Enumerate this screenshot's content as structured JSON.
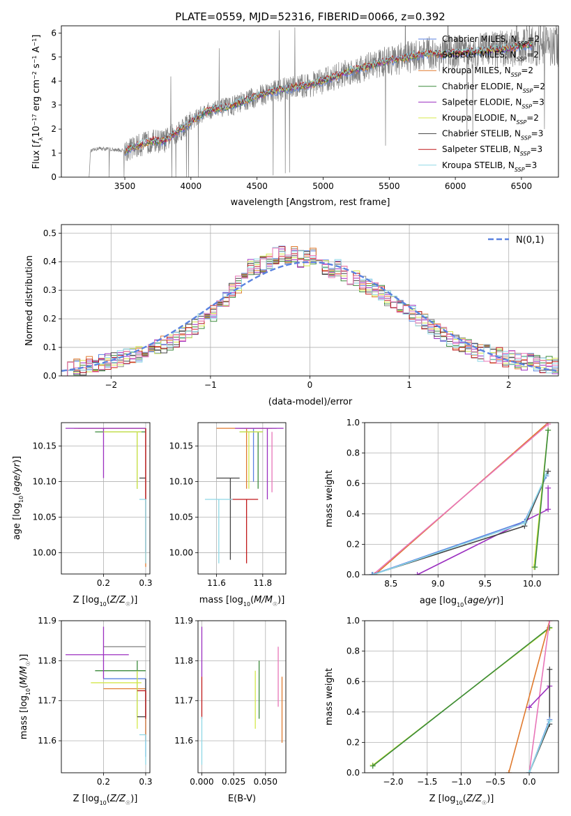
{
  "title": "PLATE=0559, MJD=52316, FIBERID=0066, z=0.392",
  "legend_entries": [
    {
      "label": "Chabrier MILES, N",
      "sub": "SSP",
      "suffix": "=2",
      "color": "#5a82e0"
    },
    {
      "label": "Salpeter MILES, N",
      "sub": "SSP",
      "suffix": "=2",
      "color": "#8c8c8c"
    },
    {
      "label": "Kroupa MILES, N",
      "sub": "SSP",
      "suffix": "=2",
      "color": "#e07a2e"
    },
    {
      "label": "Chabrier ELODIE, N",
      "sub": "SSP",
      "suffix": "=2",
      "color": "#3a8a3a"
    },
    {
      "label": "Salpeter ELODIE, N",
      "sub": "SSP",
      "suffix": "=3",
      "color": "#9b2fc0"
    },
    {
      "label": "Kroupa ELODIE, N",
      "sub": "SSP",
      "suffix": "=2",
      "color": "#d4e84a"
    },
    {
      "label": "Chabrier STELIB, N",
      "sub": "SSP",
      "suffix": "=3",
      "color": "#444444"
    },
    {
      "label": "Salpeter STELIB, N",
      "sub": "SSP",
      "suffix": "=3",
      "color": "#c0181a"
    },
    {
      "label": "Kroupa STELIB, N",
      "sub": "SSP",
      "suffix": "=3",
      "color": "#8fd8e6"
    }
  ],
  "chart_data": [
    {
      "type": "line",
      "panel": "spectrum",
      "xlabel": "wavelength [Angstrom, rest frame]",
      "ylabel_parts": [
        "Flux [",
        "f",
        "λ",
        "10",
        "−17",
        " erg cm",
        "−2",
        " s",
        "−1",
        " A",
        "−1",
        "]"
      ],
      "xlim": [
        3020,
        6780
      ],
      "ylim": [
        0,
        6.3
      ],
      "xticks": [
        3500,
        4000,
        4500,
        5000,
        5500,
        6000,
        6500
      ],
      "yticks": [
        0,
        1,
        2,
        3,
        4,
        5,
        6
      ],
      "continuum": [
        [
          3230,
          1.05
        ],
        [
          3300,
          1.2
        ],
        [
          3400,
          1.15
        ],
        [
          3500,
          1.1
        ],
        [
          3600,
          1.3
        ],
        [
          3700,
          1.5
        ],
        [
          3800,
          1.5
        ],
        [
          3900,
          1.9
        ],
        [
          4000,
          2.3
        ],
        [
          4100,
          2.7
        ],
        [
          4200,
          2.85
        ],
        [
          4300,
          2.95
        ],
        [
          4400,
          3.15
        ],
        [
          4500,
          3.35
        ],
        [
          4600,
          3.55
        ],
        [
          4700,
          3.65
        ],
        [
          4800,
          3.75
        ],
        [
          4900,
          3.85
        ],
        [
          5000,
          4.0
        ],
        [
          5100,
          4.2
        ],
        [
          5200,
          4.4
        ],
        [
          5300,
          4.55
        ],
        [
          5400,
          4.7
        ],
        [
          5500,
          4.85
        ],
        [
          5600,
          4.95
        ],
        [
          5700,
          5.05
        ],
        [
          5800,
          5.15
        ],
        [
          5900,
          5.1
        ],
        [
          6000,
          5.15
        ],
        [
          6100,
          5.2
        ],
        [
          6200,
          5.25
        ],
        [
          6300,
          5.3
        ],
        [
          6400,
          5.35
        ],
        [
          6500,
          5.45
        ],
        [
          6580,
          5.5
        ]
      ],
      "data_range": [
        3230,
        6780
      ],
      "model_range": [
        3500,
        6580
      ],
      "legend_position": "top-right"
    },
    {
      "type": "histogram",
      "panel": "residuals",
      "xlabel": "(data-model)/error",
      "ylabel": "Normed distribution",
      "xlim": [
        -2.5,
        2.5
      ],
      "ylim": [
        0,
        0.53
      ],
      "xticks": [
        -2,
        -1,
        0,
        1,
        2
      ],
      "yticks": [
        0,
        0.1,
        0.2,
        0.3,
        0.4,
        0.5
      ],
      "bin_width": 0.1,
      "gaussian_label": "N(0,1)",
      "gaussian_color": "#5a82e0",
      "base": [
        0.02,
        0.025,
        0.03,
        0.03,
        0.04,
        0.04,
        0.045,
        0.05,
        0.055,
        0.06,
        0.065,
        0.07,
        0.075,
        0.08,
        0.09,
        0.1,
        0.11,
        0.12,
        0.13,
        0.15,
        0.16,
        0.17,
        0.19,
        0.2,
        0.22,
        0.25,
        0.27,
        0.3,
        0.32,
        0.36,
        0.38,
        0.38,
        0.39,
        0.4,
        0.42,
        0.43,
        0.42,
        0.43,
        0.41,
        0.41,
        0.42,
        0.4,
        0.38,
        0.37,
        0.38,
        0.36,
        0.35,
        0.34,
        0.32,
        0.31,
        0.3,
        0.29,
        0.27,
        0.25,
        0.24,
        0.23,
        0.22,
        0.2,
        0.19,
        0.17,
        0.16,
        0.15,
        0.13,
        0.12,
        0.11,
        0.1,
        0.09,
        0.08,
        0.08,
        0.07,
        0.07,
        0.06,
        0.06,
        0.05,
        0.05,
        0.05,
        0.045,
        0.04,
        0.04,
        0.035
      ],
      "legend_position": "top-right"
    },
    {
      "type": "scatter",
      "panel": "Z-age",
      "xlabel": "Z [log10(Z/Z☉)]",
      "ylabel": "age [log10(age/yr)]",
      "xlim": [
        0.1,
        0.31
      ],
      "ylim": [
        9.97,
        10.183
      ],
      "xticks": [
        0.2,
        0.3
      ],
      "yticks": [
        10.0,
        10.05,
        10.1,
        10.15
      ],
      "points": [
        {
          "color": "#5a82e0",
          "x": 0.3,
          "y": 10.175,
          "xerr": [
            0.3,
            0.3
          ],
          "yerr": [
            10.175,
            10.0
          ]
        },
        {
          "color": "#8c8c8c",
          "x": 0.3,
          "y": 10.175,
          "xerr": [
            0.14,
            0.3
          ],
          "yerr": [
            10.175,
            10.175
          ]
        },
        {
          "color": "#e07a2e",
          "x": 0.3,
          "y": 10.175,
          "xerr": [
            0.13,
            0.3
          ],
          "yerr": [
            10.175,
            9.98
          ]
        },
        {
          "color": "#3a8a3a",
          "x": 0.28,
          "y": 10.17,
          "xerr": [
            0.18,
            0.3
          ],
          "yerr": [
            10.17,
            10.09
          ]
        },
        {
          "color": "#9b2fc0",
          "x": 0.2,
          "y": 10.175,
          "xerr": [
            0.11,
            0.3
          ],
          "yerr": [
            10.175,
            10.105
          ]
        },
        {
          "color": "#d4e84a",
          "x": 0.28,
          "y": 10.17,
          "xerr": [
            0.2,
            0.29
          ],
          "yerr": [
            10.17,
            10.09
          ]
        },
        {
          "color": "#444444",
          "x": 0.3,
          "y": 10.105,
          "xerr": [
            0.285,
            0.3
          ],
          "yerr": [
            10.105,
            10.105
          ]
        },
        {
          "color": "#c0181a",
          "x": 0.3,
          "y": 10.175,
          "xerr": [
            0.3,
            0.3
          ],
          "yerr": [
            10.175,
            10.075
          ]
        },
        {
          "color": "#8fd8e6",
          "x": 0.3,
          "y": 10.075,
          "xerr": [
            0.285,
            0.3
          ],
          "yerr": [
            10.075,
            9.985
          ]
        }
      ]
    },
    {
      "type": "scatter",
      "panel": "mass-age",
      "xlabel": "mass [log10(M/M☉)]",
      "xlim": [
        11.52,
        11.9
      ],
      "ylim": [
        9.97,
        10.183
      ],
      "xticks": [
        11.6,
        11.8
      ],
      "yticks": [
        10.0,
        10.05,
        10.1,
        10.15
      ],
      "points": [
        {
          "color": "#5a82e0",
          "x": 11.76,
          "y": 10.175,
          "xerr": [
            11.7,
            11.8
          ],
          "yerr": [
            10.175,
            10.1
          ]
        },
        {
          "color": "#8c8c8c",
          "x": 11.82,
          "y": 10.175,
          "xerr": [
            11.72,
            11.86
          ],
          "yerr": [
            10.175,
            10.175
          ]
        },
        {
          "color": "#e07a2e",
          "x": 11.73,
          "y": 10.175,
          "xerr": [
            11.6,
            11.84
          ],
          "yerr": [
            10.175,
            10.09
          ]
        },
        {
          "color": "#3a8a3a",
          "x": 11.78,
          "y": 10.17,
          "xerr": [
            11.7,
            11.8
          ],
          "yerr": [
            10.17,
            10.09
          ]
        },
        {
          "color": "#9b2fc0",
          "x": 11.82,
          "y": 10.175,
          "xerr": [
            11.68,
            11.89
          ],
          "yerr": [
            10.175,
            10.075
          ]
        },
        {
          "color": "#d4e84a",
          "x": 11.74,
          "y": 10.17,
          "xerr": [
            11.7,
            11.8
          ],
          "yerr": [
            10.17,
            10.09
          ]
        },
        {
          "color": "#444444",
          "x": 11.66,
          "y": 10.105,
          "xerr": [
            11.6,
            11.7
          ],
          "yerr": [
            10.105,
            9.99
          ]
        },
        {
          "color": "#c0181a",
          "x": 11.73,
          "y": 10.075,
          "xerr": [
            11.66,
            11.78
          ],
          "yerr": [
            10.075,
            9.985
          ]
        },
        {
          "color": "#8fd8e6",
          "x": 11.61,
          "y": 10.075,
          "xerr": [
            11.55,
            11.67
          ],
          "yerr": [
            10.075,
            9.985
          ]
        },
        {
          "color": "#e875b8",
          "x": 11.84,
          "y": 10.1,
          "xerr": [
            11.84,
            11.84
          ],
          "yerr": [
            10.17,
            10.085
          ]
        }
      ]
    },
    {
      "type": "line",
      "panel": "age-weight",
      "xlabel": "age [log10(age/yr)]",
      "ylabel": "mass weight",
      "xlim": [
        8.22,
        10.28
      ],
      "ylim": [
        0,
        1
      ],
      "xticks": [
        8.5,
        9.0,
        9.5,
        10.0
      ],
      "yticks": [
        0,
        0.2,
        0.4,
        0.6,
        0.8,
        1.0
      ],
      "series": [
        {
          "color": "#e07a2e",
          "points": [
            [
              8.33,
              0.0
            ],
            [
              10.17,
              1.0
            ]
          ]
        },
        {
          "color": "#e875b8",
          "points": [
            [
              8.31,
              0.0
            ],
            [
              10.17,
              0.99
            ]
          ]
        },
        {
          "color": "#9b2fc0",
          "points": [
            [
              8.78,
              0.0
            ],
            [
              10.17,
              0.43
            ],
            [
              10.17,
              0.57
            ]
          ]
        },
        {
          "color": "#444444",
          "points": [
            [
              8.3,
              0.0
            ],
            [
              9.92,
              0.32
            ],
            [
              10.17,
              0.68
            ]
          ]
        },
        {
          "color": "#5a82e0",
          "points": [
            [
              8.3,
              0.0
            ],
            [
              9.92,
              0.35
            ],
            [
              10.15,
              0.65
            ]
          ]
        },
        {
          "color": "#8fd8e6",
          "points": [
            [
              8.31,
              0.0
            ],
            [
              9.92,
              0.34
            ],
            [
              10.15,
              0.66
            ]
          ]
        },
        {
          "color": "#d4e84a",
          "points": [
            [
              10.02,
              0.05
            ],
            [
              10.17,
              0.95
            ]
          ]
        },
        {
          "color": "#3a8a3a",
          "points": [
            [
              10.03,
              0.05
            ],
            [
              10.17,
              0.95
            ]
          ]
        }
      ]
    },
    {
      "type": "scatter",
      "panel": "Z-mass",
      "xlabel": "Z [log10(Z/Z☉)]",
      "ylabel": "mass [log10(M/M☉)]",
      "xlim": [
        0.1,
        0.31
      ],
      "ylim": [
        11.52,
        11.9
      ],
      "xticks": [
        0.2,
        0.3
      ],
      "yticks": [
        11.6,
        11.7,
        11.8,
        11.9
      ],
      "points": [
        {
          "color": "#5a82e0",
          "x": 0.3,
          "y": 11.755,
          "xerr": [
            0.2,
            0.3
          ],
          "yerr": [
            11.755,
            11.56
          ]
        },
        {
          "color": "#8c8c8c",
          "x": 0.3,
          "y": 11.835,
          "xerr": [
            0.2,
            0.3
          ],
          "yerr": [
            11.835,
            11.835
          ]
        },
        {
          "color": "#e07a2e",
          "x": 0.3,
          "y": 11.73,
          "xerr": [
            0.2,
            0.3
          ],
          "yerr": [
            11.73,
            11.6
          ]
        },
        {
          "color": "#3a8a3a",
          "x": 0.28,
          "y": 11.775,
          "xerr": [
            0.18,
            0.3
          ],
          "yerr": [
            11.8,
            11.66
          ]
        },
        {
          "color": "#9b2fc0",
          "x": 0.2,
          "y": 11.815,
          "xerr": [
            0.11,
            0.26
          ],
          "yerr": [
            11.885,
            11.755
          ]
        },
        {
          "color": "#d4e84a",
          "x": 0.28,
          "y": 11.745,
          "xerr": [
            0.17,
            0.29
          ],
          "yerr": [
            11.775,
            11.63
          ]
        },
        {
          "color": "#444444",
          "x": 0.3,
          "y": 11.66,
          "xerr": [
            0.28,
            0.3
          ],
          "yerr": [
            11.755,
            11.66
          ]
        },
        {
          "color": "#c0181a",
          "x": 0.3,
          "y": 11.725,
          "xerr": [
            0.28,
            0.3
          ],
          "yerr": [
            11.725,
            11.655
          ]
        },
        {
          "color": "#8fd8e6",
          "x": 0.3,
          "y": 11.615,
          "xerr": [
            0.285,
            0.3
          ],
          "yerr": [
            11.615,
            11.54
          ]
        }
      ]
    },
    {
      "type": "scatter",
      "panel": "EBV-mass",
      "xlabel": "E(B-V)",
      "xlim": [
        -0.003,
        0.066
      ],
      "ylim": [
        11.52,
        11.9
      ],
      "xticks": [
        0.0,
        0.025,
        0.05
      ],
      "yticks": [
        11.6,
        11.7,
        11.8,
        11.9
      ],
      "points": [
        {
          "color": "#9b2fc0",
          "x": 0.0,
          "yerr": [
            11.885,
            11.76
          ]
        },
        {
          "color": "#c0181a",
          "x": 0.0,
          "yerr": [
            11.76,
            11.655
          ]
        },
        {
          "color": "#8fd8e6",
          "x": 0.0,
          "yerr": [
            11.66,
            11.54
          ]
        },
        {
          "color": "#d4e84a",
          "x": 0.042,
          "yerr": [
            11.775,
            11.63
          ]
        },
        {
          "color": "#3a8a3a",
          "x": 0.045,
          "yerr": [
            11.8,
            11.655
          ]
        },
        {
          "color": "#e875b8",
          "x": 0.06,
          "yerr": [
            11.835,
            11.685
          ]
        },
        {
          "color": "#e07a2e",
          "x": 0.063,
          "yerr": [
            11.76,
            11.595
          ]
        }
      ]
    },
    {
      "type": "line",
      "panel": "Z-weight",
      "xlabel": "Z [log10(Z/Z☉)]",
      "ylabel": "mass weight",
      "xlim": [
        -2.42,
        0.43
      ],
      "ylim": [
        0,
        1
      ],
      "xticks": [
        -2.0,
        -1.5,
        -1.0,
        -0.5,
        0.0
      ],
      "yticks": [
        0,
        0.2,
        0.4,
        0.6,
        0.8,
        1.0
      ],
      "series": [
        {
          "color": "#d4e84a",
          "points": [
            [
              -2.3,
              0.05
            ],
            [
              0.3,
              0.95
            ]
          ]
        },
        {
          "color": "#3a8a3a",
          "points": [
            [
              -2.3,
              0.045
            ],
            [
              0.3,
              0.955
            ]
          ]
        },
        {
          "color": "#e07a2e",
          "points": [
            [
              -0.3,
              0.0
            ],
            [
              0.3,
              1.0
            ]
          ]
        },
        {
          "color": "#e875b8",
          "points": [
            [
              0.0,
              0.0
            ],
            [
              0.3,
              1.0
            ]
          ]
        },
        {
          "color": "#9b2fc0",
          "points": [
            [
              0.0,
              0.43
            ],
            [
              0.3,
              0.57
            ]
          ]
        },
        {
          "color": "#444444",
          "points": [
            [
              0.0,
              0.0
            ],
            [
              0.3,
              0.32
            ],
            [
              0.3,
              0.68
            ]
          ]
        },
        {
          "color": "#5a82e0",
          "points": [
            [
              0.0,
              0.0
            ],
            [
              0.3,
              0.35
            ]
          ]
        },
        {
          "color": "#8fd8e6",
          "points": [
            [
              0.0,
              0.0
            ],
            [
              0.3,
              0.34
            ]
          ]
        }
      ]
    }
  ]
}
